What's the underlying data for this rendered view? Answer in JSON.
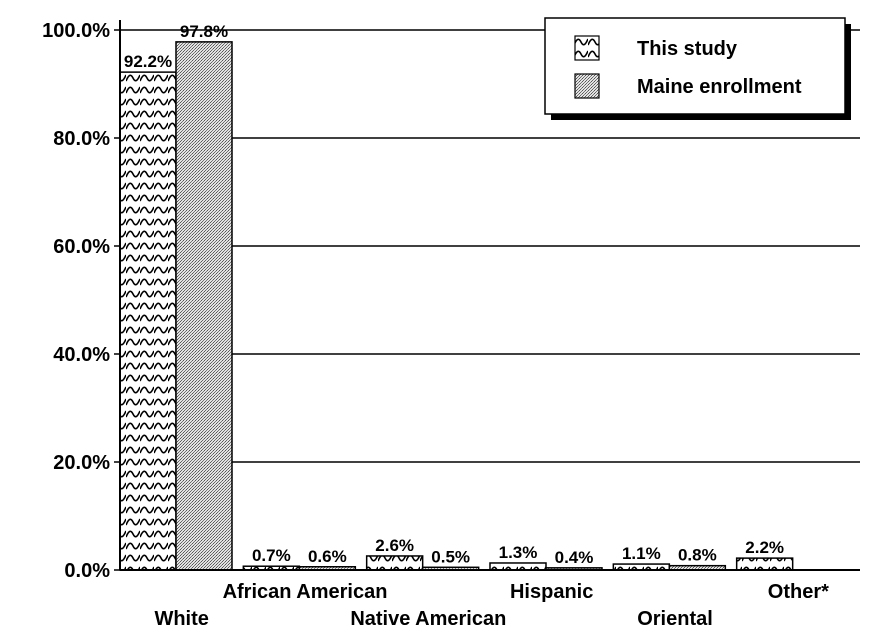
{
  "chart_data": {
    "type": "bar",
    "categories": [
      "White",
      "African American",
      "Native American",
      "Hispanic",
      "Oriental",
      "Other*"
    ],
    "series": [
      {
        "name": "This study",
        "values": [
          92.2,
          0.7,
          2.6,
          1.3,
          1.1,
          2.2
        ],
        "labels": [
          "92.2%",
          "0.7%",
          "2.6%",
          "1.3%",
          "1.1%",
          "2.2%"
        ],
        "pattern": "wave-hatch"
      },
      {
        "name": "Maine enrollment",
        "values": [
          97.8,
          0.6,
          0.5,
          0.4,
          0.8,
          null
        ],
        "labels": [
          "97.8%",
          "0.6%",
          "0.5%",
          "0.4%",
          "0.8%",
          ""
        ],
        "pattern": "stipple"
      }
    ],
    "yticks": [
      "0.0%",
      "20.0%",
      "40.0%",
      "60.0%",
      "80.0%",
      "100.0%"
    ],
    "ylim": [
      0,
      100
    ],
    "title": "",
    "xlabel": "",
    "ylabel": "",
    "grid": true,
    "legend_position": "top-right",
    "colors": {
      "ink": "#000000",
      "background": "#ffffff",
      "stipple": "#9a9a9a"
    }
  }
}
